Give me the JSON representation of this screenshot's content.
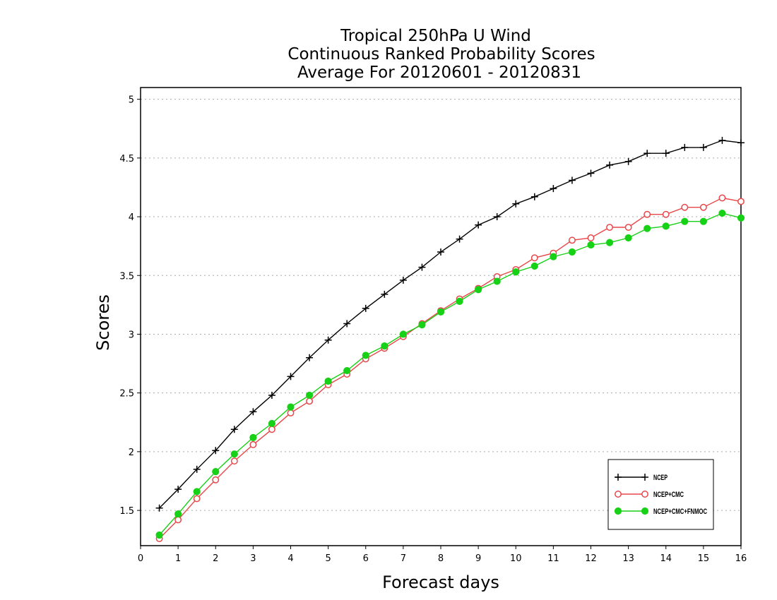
{
  "chart_data": {
    "type": "line",
    "title": [
      "Tropical 250hPa U Wind",
      "Continuous Ranked Probability Scores",
      "Average For 20120601 - 20120831"
    ],
    "xlabel": "Forecast days",
    "ylabel": "Scores",
    "xlim": [
      0,
      16
    ],
    "ylim": [
      1.2,
      5.1
    ],
    "xticks": [
      0,
      1,
      2,
      3,
      4,
      5,
      6,
      7,
      8,
      9,
      10,
      11,
      12,
      13,
      14,
      15,
      16
    ],
    "yticks": [
      1.5,
      2,
      2.5,
      3,
      3.5,
      4,
      4.5,
      5
    ],
    "ytick_labels": [
      "1.5",
      "2",
      "2.5",
      "3",
      "3.5",
      "4",
      "4.5",
      "5"
    ],
    "grid": "horizontal dotted",
    "legend_position": "bottom-right",
    "x": [
      0.5,
      1,
      1.5,
      2,
      2.5,
      3,
      3.5,
      4,
      4.5,
      5,
      5.5,
      6,
      6.5,
      7,
      7.5,
      8,
      8.5,
      9,
      9.5,
      10,
      10.5,
      11,
      11.5,
      12,
      12.5,
      13,
      13.5,
      14,
      14.5,
      15,
      15.5,
      16
    ],
    "series": [
      {
        "name": "NCEP",
        "color": "#000000",
        "marker": "plus",
        "values": [
          1.52,
          1.68,
          1.85,
          2.01,
          2.19,
          2.34,
          2.48,
          2.64,
          2.8,
          2.95,
          3.09,
          3.22,
          3.34,
          3.46,
          3.57,
          3.7,
          3.81,
          3.93,
          4.0,
          4.11,
          4.17,
          4.24,
          4.31,
          4.37,
          4.44,
          4.47,
          4.54,
          4.54,
          4.59,
          4.59,
          4.65,
          4.63
        ]
      },
      {
        "name": "NCEP+CMC",
        "color": "#e8474a",
        "marker": "open-circle",
        "values": [
          1.26,
          1.42,
          1.6,
          1.76,
          1.92,
          2.06,
          2.19,
          2.33,
          2.43,
          2.57,
          2.66,
          2.79,
          2.88,
          2.98,
          3.09,
          3.2,
          3.3,
          3.39,
          3.49,
          3.55,
          3.65,
          3.69,
          3.8,
          3.82,
          3.91,
          3.91,
          4.02,
          4.02,
          4.08,
          4.08,
          4.16,
          4.13
        ]
      },
      {
        "name": "NCEP+CMC+FNMOC",
        "color": "#17d117",
        "marker": "filled-circle",
        "values": [
          1.29,
          1.47,
          1.66,
          1.83,
          1.98,
          2.12,
          2.24,
          2.38,
          2.48,
          2.6,
          2.69,
          2.82,
          2.9,
          3.0,
          3.08,
          3.19,
          3.28,
          3.38,
          3.45,
          3.53,
          3.58,
          3.66,
          3.7,
          3.76,
          3.78,
          3.82,
          3.9,
          3.92,
          3.96,
          3.96,
          4.03,
          3.99
        ]
      }
    ]
  }
}
